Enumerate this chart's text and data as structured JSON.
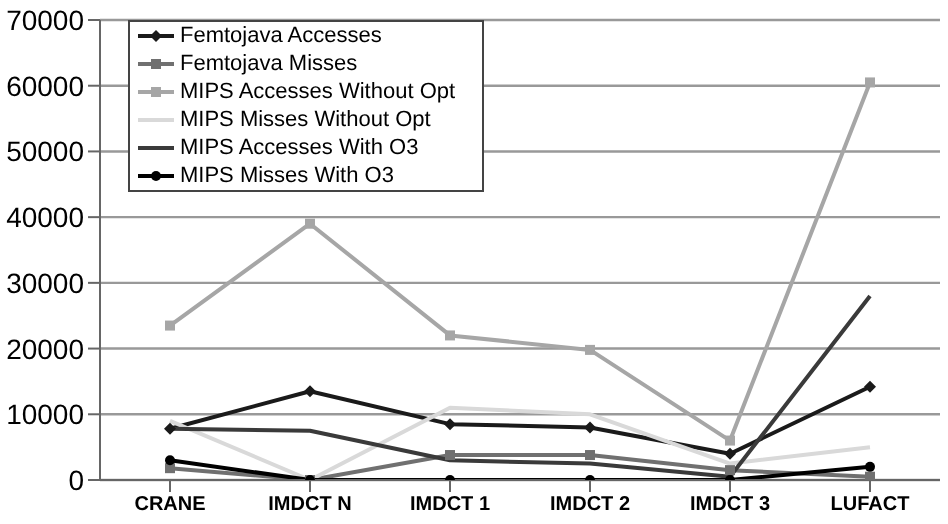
{
  "chart_data": {
    "type": "line",
    "categories": [
      "CRANE",
      "IMDCT N",
      "IMDCT 1",
      "IMDCT 2",
      "IMDCT 3",
      "LUFACT"
    ],
    "series": [
      {
        "name": "Femtojava Accesses",
        "color": "#1a1a1a",
        "marker": "diamond",
        "values": [
          7800,
          13500,
          8500,
          8000,
          4000,
          14200
        ]
      },
      {
        "name": "Femtojava Misses",
        "color": "#707070",
        "marker": "square",
        "values": [
          1800,
          0,
          3800,
          3800,
          1500,
          500
        ]
      },
      {
        "name": "MIPS Accesses Without Opt",
        "color": "#a6a6a6",
        "marker": "square",
        "values": [
          23500,
          39000,
          22000,
          19800,
          6000,
          60500
        ]
      },
      {
        "name": "MIPS Misses Without Opt",
        "color": "#d9d9d9",
        "marker": "none",
        "values": [
          9000,
          0,
          11000,
          10000,
          2500,
          5000
        ]
      },
      {
        "name": "MIPS Accesses With O3",
        "color": "#3a3a3a",
        "marker": "none",
        "values": [
          7800,
          7500,
          3000,
          2500,
          500,
          28000
        ]
      },
      {
        "name": "MIPS Misses With O3",
        "color": "#000000",
        "marker": "circle",
        "values": [
          3000,
          0,
          0,
          0,
          0,
          2000
        ]
      }
    ],
    "ylim": [
      0,
      70000
    ],
    "yticks": [
      0,
      10000,
      20000,
      30000,
      40000,
      50000,
      60000,
      70000
    ],
    "grid": "y",
    "legend": "top left"
  }
}
